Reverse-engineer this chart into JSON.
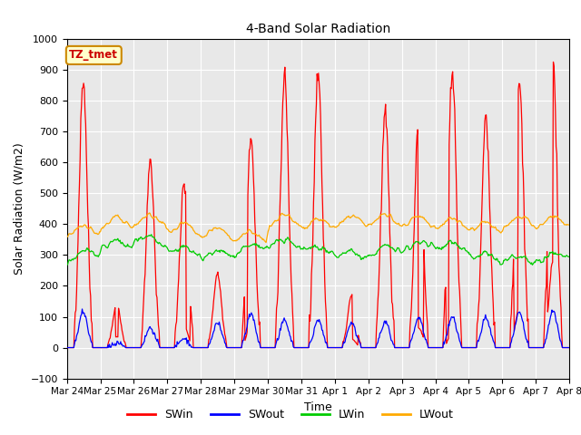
{
  "title": "4-Band Solar Radiation",
  "xlabel": "Time",
  "ylabel": "Solar Radiation (W/m2)",
  "ylim": [
    -100,
    1000
  ],
  "background_color": "#e8e8e8",
  "grid_color": "#ffffff",
  "line_colors": {
    "SWin": "#ff0000",
    "SWout": "#0000ff",
    "LWin": "#00cc00",
    "LWout": "#ffaa00"
  },
  "annotation_text": "TZ_tmet",
  "annotation_color": "#cc0000",
  "annotation_bg": "#ffffcc",
  "annotation_edge": "#cc8800",
  "tick_labels": [
    "Mar 24",
    "Mar 25",
    "Mar 26",
    "Mar 27",
    "Mar 28",
    "Mar 29",
    "Mar 30",
    "Mar 31",
    "Apr 1",
    "Apr 2",
    "Apr 3",
    "Apr 4",
    "Apr 5",
    "Apr 6",
    "Apr 7",
    "Apr 8"
  ],
  "tick_positions": [
    0,
    1,
    2,
    3,
    4,
    5,
    6,
    7,
    8,
    9,
    10,
    11,
    12,
    13,
    14,
    15
  ]
}
